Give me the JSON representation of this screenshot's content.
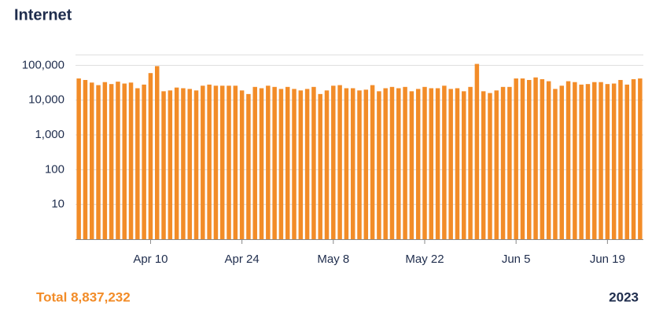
{
  "chart_data": {
    "type": "bar",
    "title": "Internet",
    "footer_left": "Total 8,837,232",
    "footer_right": "2023",
    "categories": [
      null,
      null,
      null,
      null,
      null,
      null,
      null,
      null,
      null,
      null,
      null,
      "Apr 10",
      null,
      null,
      null,
      null,
      null,
      null,
      null,
      null,
      null,
      null,
      null,
      null,
      null,
      "Apr 24",
      null,
      null,
      null,
      null,
      null,
      null,
      null,
      null,
      null,
      null,
      null,
      null,
      null,
      "May 8",
      null,
      null,
      null,
      null,
      null,
      null,
      null,
      null,
      null,
      null,
      null,
      null,
      null,
      "May 22",
      null,
      null,
      null,
      null,
      null,
      null,
      null,
      null,
      null,
      null,
      null,
      null,
      null,
      "Jun 5",
      null,
      null,
      null,
      null,
      null,
      null,
      null,
      null,
      null,
      null,
      null,
      null,
      null,
      "Jun 19",
      null,
      null,
      null,
      null,
      null
    ],
    "values": [
      42000,
      38000,
      32000,
      27000,
      33000,
      29000,
      34000,
      30000,
      32000,
      22000,
      28000,
      60000,
      95000,
      18000,
      19000,
      23000,
      22000,
      21000,
      19000,
      26000,
      28000,
      26000,
      26000,
      26000,
      26000,
      19000,
      15000,
      24000,
      22000,
      26000,
      24000,
      21000,
      24000,
      21000,
      19000,
      21000,
      24000,
      15000,
      19000,
      26000,
      27000,
      22000,
      22000,
      19000,
      20000,
      27000,
      18000,
      22000,
      24000,
      22000,
      24000,
      18000,
      21000,
      24000,
      22000,
      22000,
      26000,
      21000,
      22000,
      18000,
      24000,
      110000,
      18000,
      16000,
      19000,
      24000,
      24000,
      42000,
      42000,
      38000,
      45000,
      40000,
      35000,
      21000,
      26000,
      35000,
      33000,
      28000,
      29000,
      33000,
      33000,
      29000,
      30000,
      38000,
      28000,
      40000,
      42000
    ],
    "color": "#f28c28",
    "log_scale": true,
    "grid": true,
    "ylim": [
      1,
      200000
    ],
    "yticks": [
      10,
      100,
      {
        "value": 1000,
        "label": "1,000"
      },
      {
        "value": 10000,
        "label": "10,000"
      },
      {
        "value": 100000,
        "label": "100,000"
      }
    ]
  }
}
